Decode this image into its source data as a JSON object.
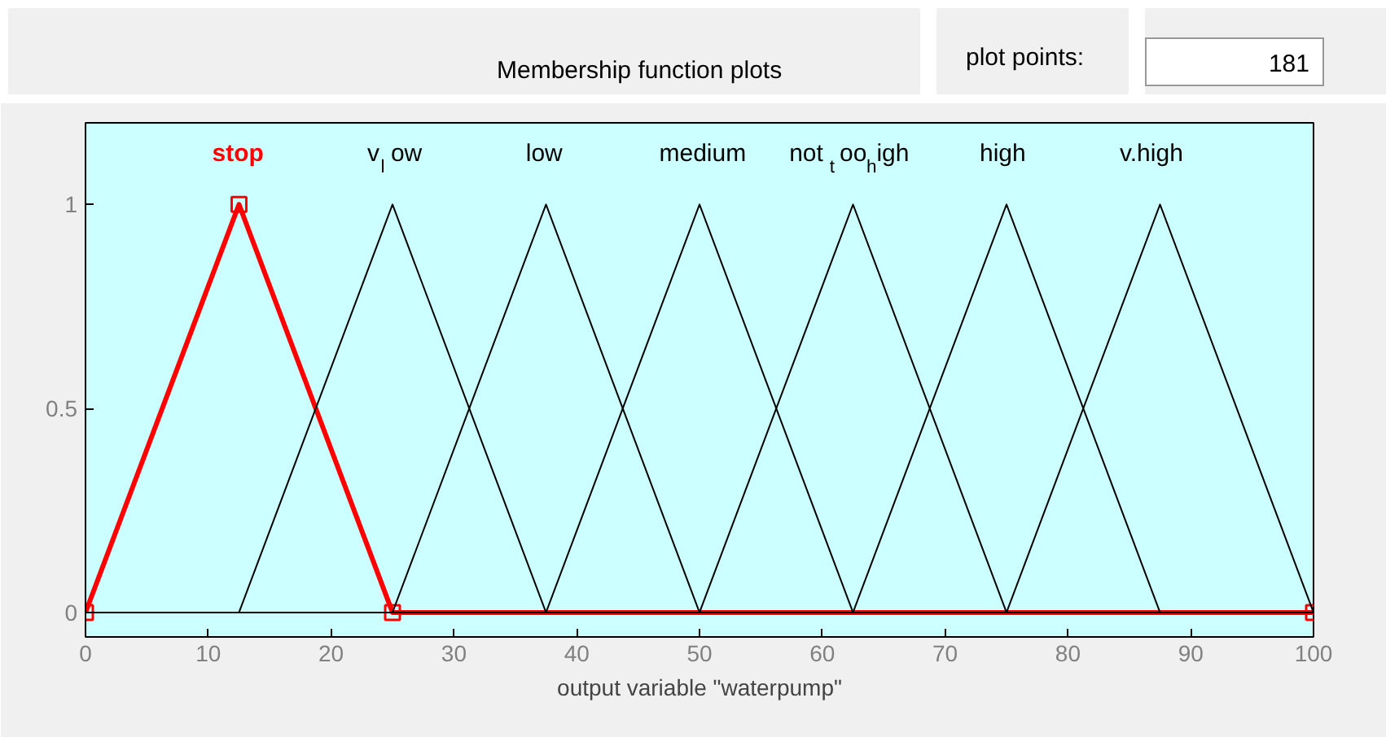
{
  "chart_data": {
    "type": "line",
    "title": "Membership function plots",
    "xlabel": "output variable \"waterpump\"",
    "annotations": [
      "plot points:",
      "181"
    ],
    "xlim": [
      0,
      100
    ],
    "ylim": [
      -0.06,
      1.2
    ],
    "xticks": [
      0,
      10,
      20,
      30,
      40,
      50,
      60,
      70,
      80,
      90,
      100
    ],
    "yticks": [
      0,
      0.5,
      1
    ],
    "grid": false,
    "line_style": "solid",
    "series": [
      {
        "name": "stop",
        "color": "#ff0000",
        "x": [
          0,
          12.5,
          25,
          100
        ],
        "values": [
          0,
          1,
          0,
          0
        ],
        "marker": "square"
      },
      {
        "name": "v$_{l}$ow",
        "color": "#000000",
        "x": [
          0,
          12.5,
          25,
          37.5,
          100
        ],
        "values": [
          0,
          0,
          1,
          0,
          0
        ],
        "marker": "none"
      },
      {
        "name": "low",
        "color": "#000000",
        "x": [
          0,
          25,
          37.5,
          50,
          100
        ],
        "values": [
          0,
          0,
          1,
          0,
          0
        ],
        "marker": "none"
      },
      {
        "name": "medium",
        "color": "#000000",
        "x": [
          0,
          37.5,
          50,
          62.5,
          100
        ],
        "values": [
          0,
          0,
          1,
          0,
          0
        ],
        "marker": "none"
      },
      {
        "name": "not$_{t}$oo$_{h}$igh",
        "color": "#000000",
        "x": [
          0,
          50,
          62.5,
          75,
          100
        ],
        "values": [
          0,
          0,
          1,
          0,
          0
        ],
        "marker": "none"
      },
      {
        "name": "high",
        "color": "#000000",
        "x": [
          0,
          62.5,
          75,
          87.5,
          100
        ],
        "values": [
          0,
          0,
          1,
          0,
          0
        ],
        "marker": "none"
      },
      {
        "name": "v.high",
        "color": "#000000",
        "x": [
          0,
          75,
          87.5,
          100
        ],
        "values": [
          0,
          0,
          1,
          0
        ],
        "marker": "none"
      }
    ]
  }
}
